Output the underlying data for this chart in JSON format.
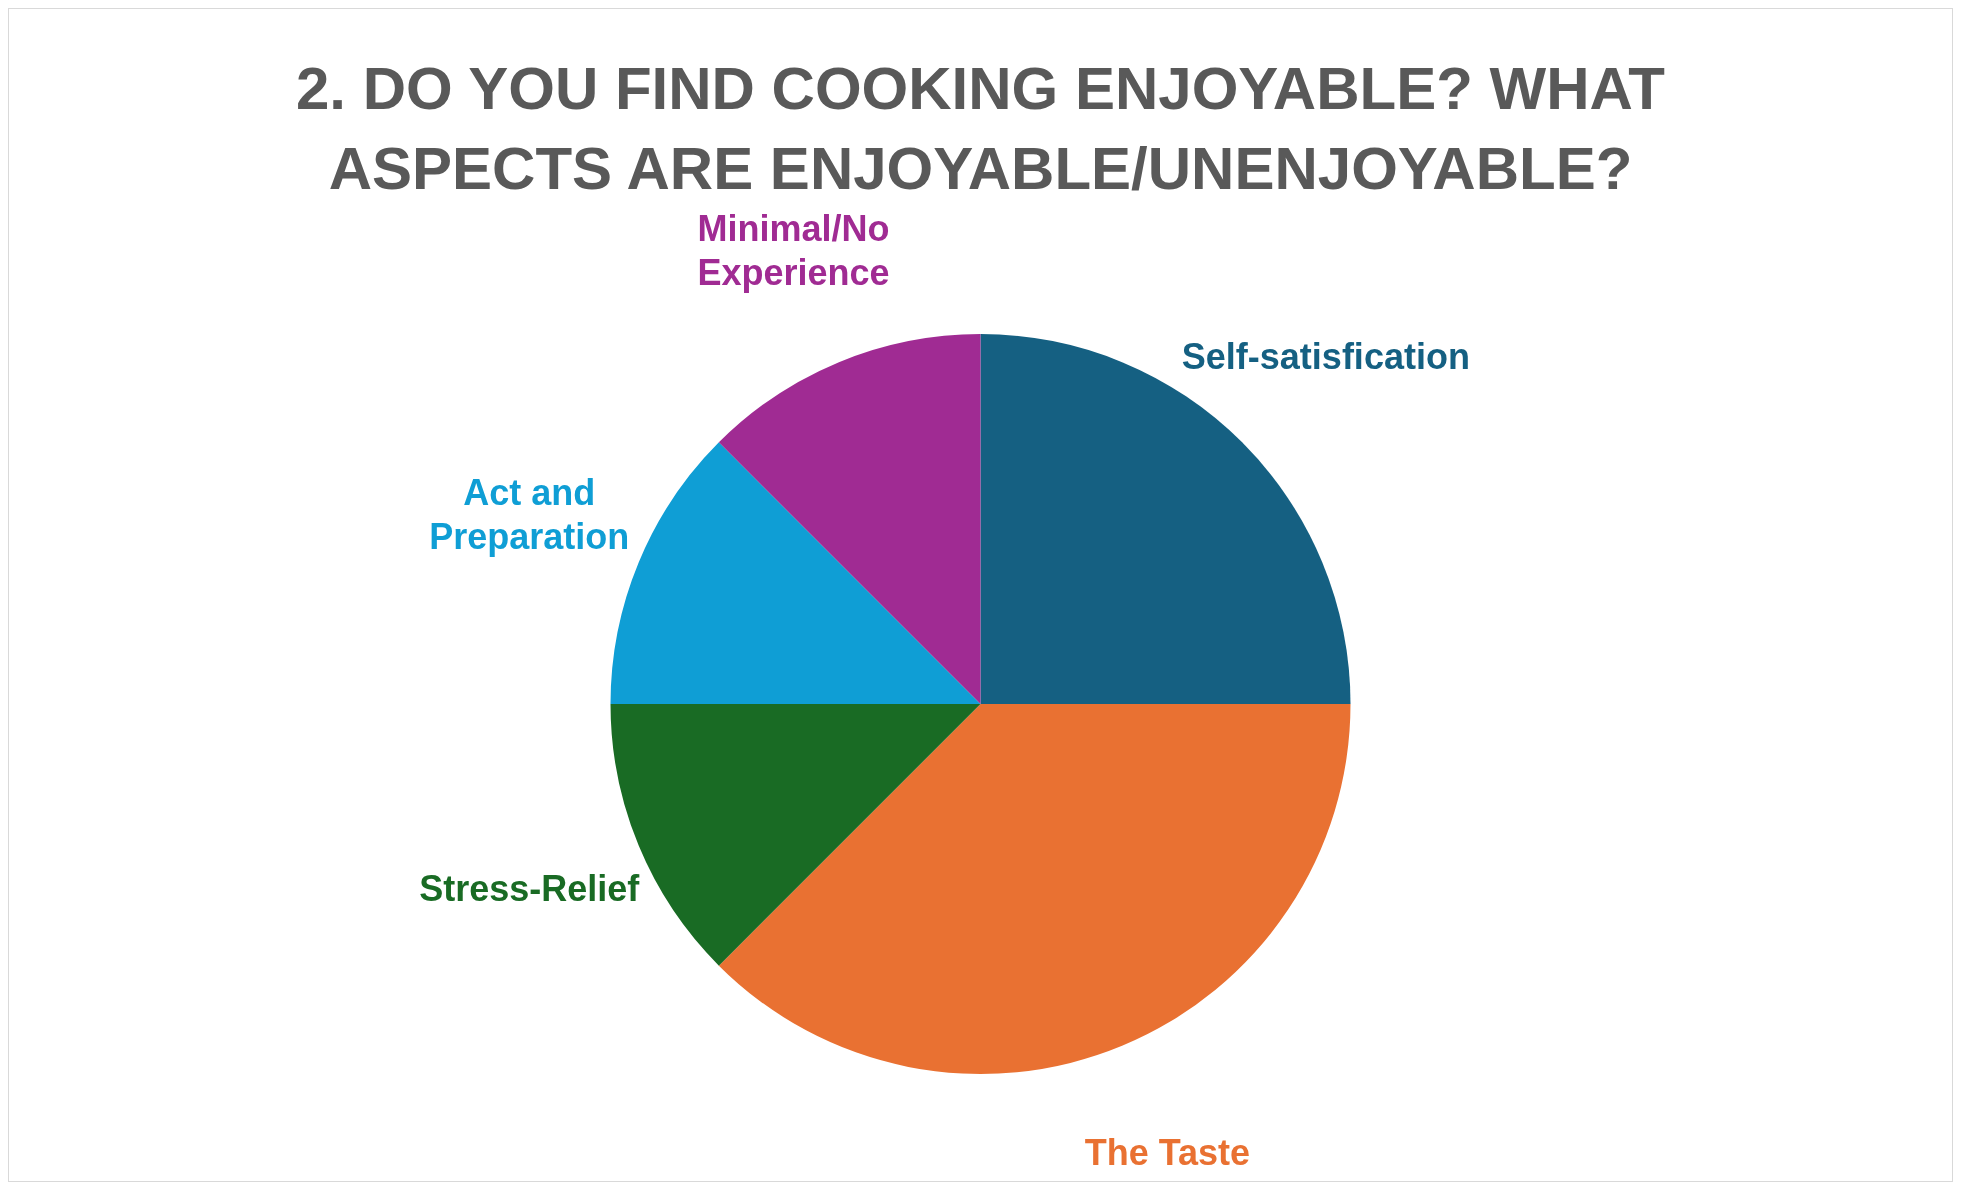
{
  "chart_data": {
    "type": "pie",
    "title": "2. DO YOU FIND COOKING ENJOYABLE? WHAT ASPECTS ARE ENJOYABLE/UNENJOYABLE?",
    "categories": [
      "Self-satisfication",
      "The Taste",
      "Stress-Relief",
      "Act and Preparation",
      "Minimal/No Experience"
    ],
    "values": [
      25,
      37.5,
      12.5,
      12.5,
      12.5
    ],
    "colors": [
      "#156082",
      "#e97132",
      "#196b24",
      "#0f9ed5",
      "#a02b93"
    ],
    "legend": false
  }
}
